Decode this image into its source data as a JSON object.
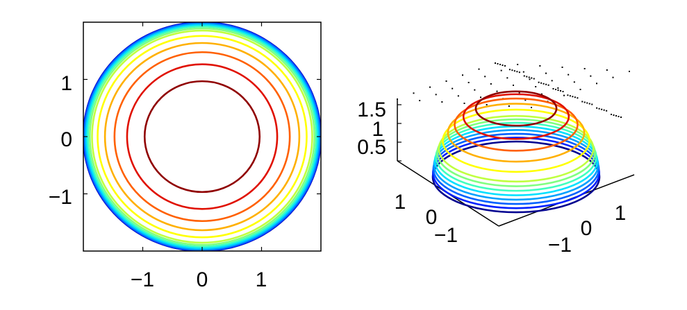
{
  "chart_data": [
    {
      "type": "contour",
      "function": "z = sqrt(4 - x^2 - y^2)",
      "xlim": [
        -2,
        2
      ],
      "ylim": [
        -2,
        2
      ],
      "xticks": [
        "−1",
        "0",
        "1"
      ],
      "yticks": [
        "−1",
        "0",
        "1"
      ],
      "levels": [
        0.05,
        0.15,
        0.25,
        0.35,
        0.45,
        0.55,
        0.65,
        0.75,
        0.95,
        1.15,
        1.35,
        1.55,
        1.75
      ],
      "colors": [
        "#00008f",
        "#0020ff",
        "#0060ff",
        "#00a0ff",
        "#00e0ff",
        "#40ffbf",
        "#80ff80",
        "#c0ff40",
        "#ffff00",
        "#ffb000",
        "#ff6000",
        "#e01000",
        "#900000"
      ],
      "grid": false
    },
    {
      "type": "contour3d",
      "function": "z = sqrt(4 - x^2 - y^2)",
      "xticks": [
        "−1",
        "0",
        "1"
      ],
      "yticks": [
        "1",
        "0",
        "−1"
      ],
      "zticks": [
        "0.5",
        "1",
        "1.5"
      ],
      "levels": [
        0.05,
        0.15,
        0.25,
        0.35,
        0.45,
        0.55,
        0.65,
        0.75,
        0.95,
        1.15,
        1.35,
        1.55,
        1.75
      ],
      "colors": [
        "#00008f",
        "#0020ff",
        "#0060ff",
        "#00a0ff",
        "#00e0ff",
        "#40ffbf",
        "#80ff80",
        "#c0ff40",
        "#ffff00",
        "#ffb000",
        "#ff6000",
        "#e01000",
        "#900000"
      ],
      "grid": true
    }
  ]
}
